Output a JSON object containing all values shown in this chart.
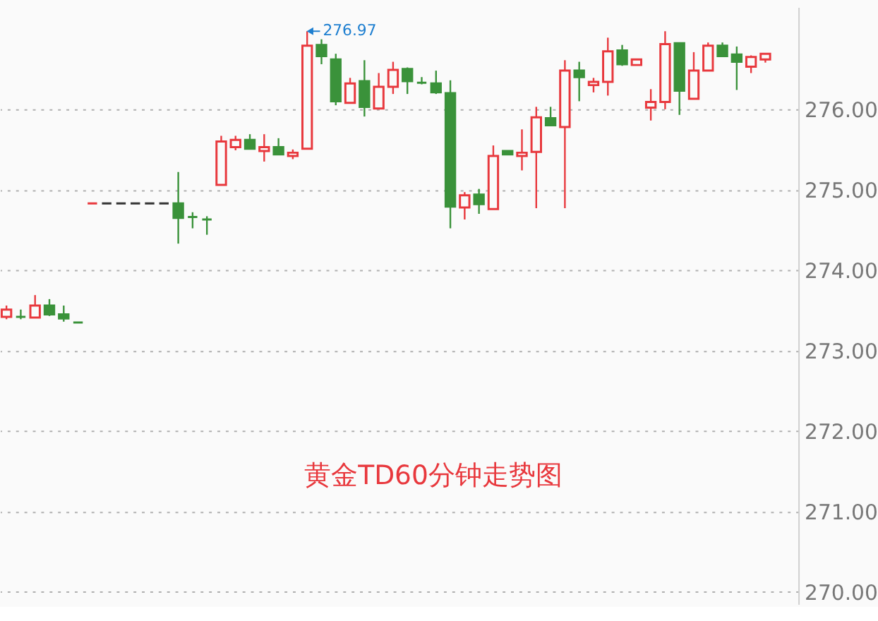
{
  "chart_data": {
    "type": "candlestick",
    "title": "黄金TD60分钟走势图",
    "categories": [
      null,
      null,
      null,
      null,
      null,
      null,
      null,
      null,
      null,
      null,
      null,
      null,
      null,
      null,
      null,
      null,
      null,
      null,
      null,
      null,
      null,
      null,
      null,
      null,
      null,
      null,
      null,
      null,
      null,
      null,
      null,
      null,
      null,
      null,
      null,
      null,
      null,
      null,
      null,
      null,
      null,
      null,
      null,
      null,
      null,
      null,
      null,
      null,
      null,
      null,
      null,
      null,
      null,
      null
    ],
    "ohlc": [
      [
        273.42,
        273.56,
        273.39,
        273.51
      ],
      [
        273.42,
        273.51,
        273.39,
        273.42
      ],
      [
        273.41,
        273.69,
        273.41,
        273.56
      ],
      [
        273.56,
        273.64,
        273.43,
        273.45
      ],
      [
        273.45,
        273.56,
        273.36,
        273.4
      ],
      [
        273.35,
        273.35,
        273.35,
        273.35
      ],
      [
        274.83,
        274.83,
        274.83,
        274.83
      ],
      [
        274.83,
        274.83,
        274.83,
        274.83
      ],
      [
        274.83,
        274.83,
        274.83,
        274.83
      ],
      [
        274.83,
        274.83,
        274.83,
        274.83
      ],
      [
        274.83,
        274.83,
        274.83,
        274.83
      ],
      [
        274.83,
        274.83,
        274.83,
        274.83
      ],
      [
        274.83,
        275.22,
        274.33,
        274.65
      ],
      [
        274.66,
        274.72,
        274.52,
        274.66
      ],
      [
        274.63,
        274.67,
        274.44,
        274.63
      ],
      [
        275.06,
        275.67,
        275.06,
        275.6
      ],
      [
        275.53,
        275.67,
        275.49,
        275.62
      ],
      [
        275.62,
        275.69,
        275.51,
        275.51
      ],
      [
        275.48,
        275.69,
        275.35,
        275.53
      ],
      [
        275.53,
        275.64,
        275.44,
        275.44
      ],
      [
        275.42,
        275.5,
        275.38,
        275.46
      ],
      [
        275.51,
        276.97,
        275.51,
        276.79
      ],
      [
        276.8,
        276.87,
        276.56,
        276.66
      ],
      [
        276.62,
        276.69,
        276.05,
        276.1
      ],
      [
        276.08,
        276.39,
        276.08,
        276.32
      ],
      [
        276.35,
        276.61,
        275.91,
        276.03
      ],
      [
        276.01,
        276.45,
        276.01,
        276.28
      ],
      [
        276.28,
        276.59,
        276.19,
        276.49
      ],
      [
        276.5,
        276.52,
        276.19,
        276.35
      ],
      [
        276.33,
        276.4,
        276.31,
        276.33
      ],
      [
        276.32,
        276.48,
        276.19,
        276.21
      ],
      [
        276.2,
        276.36,
        274.52,
        274.79
      ],
      [
        274.78,
        274.97,
        274.63,
        274.93
      ],
      [
        274.94,
        275.01,
        274.7,
        274.82
      ],
      [
        274.76,
        275.55,
        274.76,
        275.42
      ],
      [
        275.48,
        275.48,
        275.44,
        275.44
      ],
      [
        275.42,
        275.75,
        275.24,
        275.46
      ],
      [
        275.47,
        276.03,
        274.77,
        275.9
      ],
      [
        275.89,
        276.03,
        275.79,
        275.8
      ],
      [
        275.78,
        276.61,
        274.77,
        276.48
      ],
      [
        276.48,
        276.59,
        276.1,
        276.4
      ],
      [
        276.3,
        276.39,
        276.21,
        276.34
      ],
      [
        276.34,
        276.89,
        276.17,
        276.72
      ],
      [
        276.73,
        276.8,
        276.54,
        276.56
      ],
      [
        276.55,
        276.62,
        276.55,
        276.62
      ],
      [
        276.02,
        276.25,
        275.86,
        276.09
      ],
      [
        276.09,
        276.97,
        276.0,
        276.81
      ],
      [
        276.82,
        276.82,
        275.93,
        276.23
      ],
      [
        276.13,
        276.71,
        276.13,
        276.48
      ],
      [
        276.48,
        276.83,
        276.48,
        276.79
      ],
      [
        276.79,
        276.83,
        276.65,
        276.66
      ],
      [
        276.68,
        276.78,
        276.24,
        276.59
      ],
      [
        276.53,
        276.67,
        276.45,
        276.65
      ],
      [
        276.62,
        276.69,
        276.58,
        276.69
      ]
    ],
    "colors": [
      "#e8383d",
      "#3a923a",
      "#e8383d",
      "#3a923a",
      "#3a923a",
      "#3a923a",
      "#e8383d",
      "#333333",
      "#333333",
      "#333333",
      "#333333",
      "#333333",
      "#3a923a",
      "#3a923a",
      "#3a923a",
      "#e8383d",
      "#e8383d",
      "#3a923a",
      "#e8383d",
      "#3a923a",
      "#e8383d",
      "#e8383d",
      "#3a923a",
      "#3a923a",
      "#e8383d",
      "#3a923a",
      "#e8383d",
      "#e8383d",
      "#3a923a",
      "#3a923a",
      "#3a923a",
      "#3a923a",
      "#e8383d",
      "#3a923a",
      "#e8383d",
      "#3a923a",
      "#e8383d",
      "#e8383d",
      "#3a923a",
      "#e8383d",
      "#3a923a",
      "#e8383d",
      "#e8383d",
      "#3a923a",
      "#e8383d",
      "#e8383d",
      "#e8383d",
      "#3a923a",
      "#e8383d",
      "#e8383d",
      "#3a923a",
      "#3a923a",
      "#e8383d",
      "#e8383d"
    ],
    "ylim": [
      269.85,
      277.27
    ],
    "yticks": [
      {
        "value": 270,
        "label": "270.00"
      },
      {
        "value": 271,
        "label": "271.00"
      },
      {
        "value": 272,
        "label": "272.00"
      },
      {
        "value": 273,
        "label": "273.00"
      },
      {
        "value": 274,
        "label": "274.00"
      },
      {
        "value": 275,
        "label": "275.00"
      },
      {
        "value": 276,
        "label": "276.00"
      }
    ],
    "grid": "y",
    "annotations": [
      "276.97"
    ]
  }
}
